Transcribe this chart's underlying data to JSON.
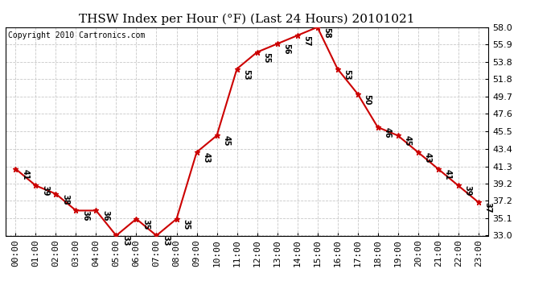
{
  "title": "THSW Index per Hour (°F) (Last 24 Hours) 20101021",
  "copyright": "Copyright 2010 Cartronics.com",
  "hours": [
    0,
    1,
    2,
    3,
    4,
    5,
    6,
    7,
    8,
    9,
    10,
    11,
    12,
    13,
    14,
    15,
    16,
    17,
    18,
    19,
    20,
    21,
    22,
    23
  ],
  "values": [
    41,
    39,
    38,
    36,
    36,
    33,
    35,
    33,
    35,
    43,
    45,
    53,
    55,
    56,
    57,
    58,
    53,
    50,
    46,
    45,
    43,
    41,
    39,
    37
  ],
  "line_color": "#cc0000",
  "marker_color": "#cc0000",
  "bg_color": "#ffffff",
  "plot_bg_color": "#ffffff",
  "grid_color": "#c8c8c8",
  "title_fontsize": 11,
  "copyright_fontsize": 7,
  "label_fontsize": 7,
  "tick_fontsize": 8,
  "ylim_min": 33.0,
  "ylim_max": 58.0,
  "yticks": [
    33.0,
    35.1,
    37.2,
    39.2,
    41.3,
    43.4,
    45.5,
    47.6,
    49.7,
    51.8,
    53.8,
    55.9,
    58.0
  ],
  "xtick_labels": [
    "00:00",
    "01:00",
    "02:00",
    "03:00",
    "04:00",
    "05:00",
    "06:00",
    "07:00",
    "08:00",
    "09:00",
    "10:00",
    "11:00",
    "12:00",
    "13:00",
    "14:00",
    "15:00",
    "16:00",
    "17:00",
    "18:00",
    "19:00",
    "20:00",
    "21:00",
    "22:00",
    "23:00"
  ]
}
